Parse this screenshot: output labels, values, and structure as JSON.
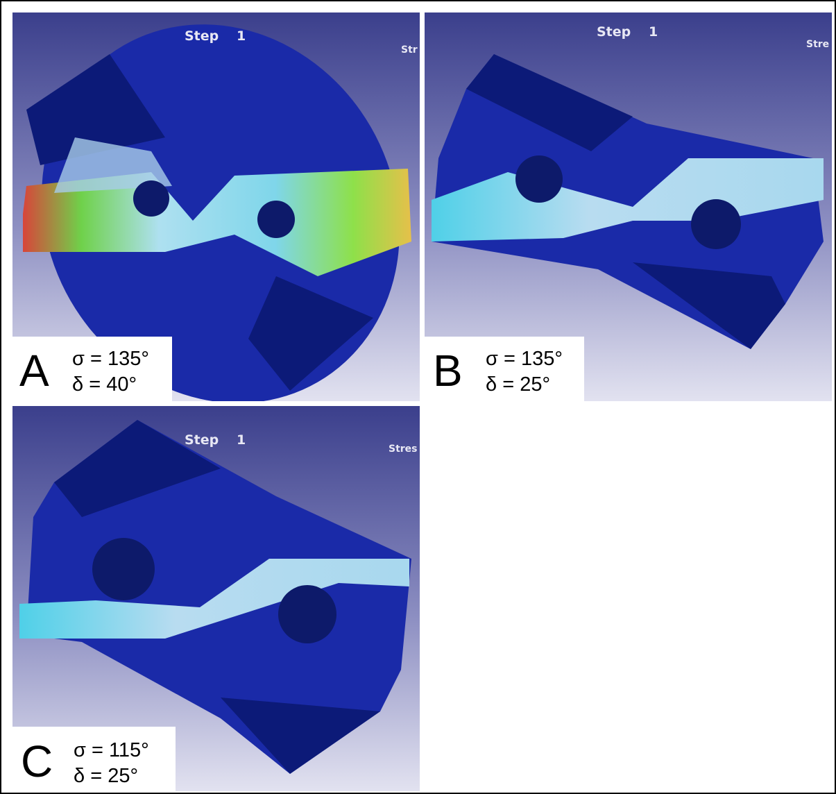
{
  "panels": [
    {
      "step_label": "Step",
      "step_number": "1",
      "stress_label": "Str",
      "letter": "A",
      "sigma": "σ = 135°",
      "delta": "δ = 40°"
    },
    {
      "step_label": "Step",
      "step_number": "1",
      "stress_label": "Stre",
      "letter": "B",
      "sigma": "σ = 135°",
      "delta": "δ = 25°"
    },
    {
      "step_label": "Step",
      "step_number": "1",
      "stress_label": "Stres",
      "letter": "C",
      "sigma": "σ = 115°",
      "delta": "δ = 25°"
    }
  ]
}
